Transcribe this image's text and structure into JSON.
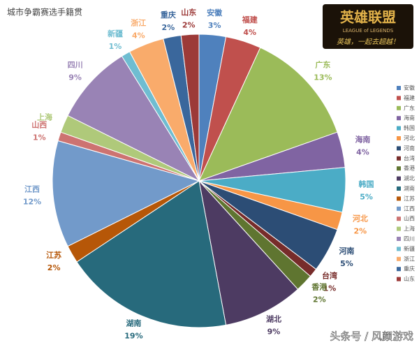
{
  "chart_data": {
    "type": "pie",
    "title": "城市争霸赛选手籍贯",
    "categories": [
      "安徽",
      "福建",
      "广东",
      "海南",
      "韩国",
      "河北",
      "河南",
      "台湾",
      "香港",
      "湖北",
      "湖南",
      "江苏",
      "江西",
      "山西",
      "上海",
      "四川",
      "新疆",
      "浙江",
      "重庆",
      "山东"
    ],
    "values": [
      3,
      4,
      13,
      4,
      5,
      2,
      5,
      1,
      2,
      9,
      19,
      2,
      12,
      1,
      2,
      9,
      1,
      4,
      2,
      2
    ],
    "value_labels": [
      "3%",
      "4%",
      "13%",
      "4%",
      "5%",
      "2%",
      "5%",
      "1%",
      "2%",
      "9%",
      "19%",
      "2%",
      "12%",
      "1%",
      null,
      "9%",
      "1%",
      "4%",
      "2%",
      "2%"
    ],
    "colors": [
      "#4f81bd",
      "#c0504d",
      "#9bbb59",
      "#8064a2",
      "#4bacc6",
      "#f79646",
      "#2c4d75",
      "#772c2a",
      "#5f7530",
      "#4d3b62",
      "#276a7c",
      "#b65708",
      "#729aca",
      "#cd7371",
      "#afc97a",
      "#9983b5",
      "#6fbdd1",
      "#f9ab6b",
      "#3a679c",
      "#9c3a38"
    ],
    "legend": "right"
  },
  "logo": {
    "title": "英雄联盟",
    "subtitle": "LEAGUE of LEGENDS",
    "slogan": "英雄，一起去超越！"
  },
  "watermark": "头条号 / 风颜游戏"
}
